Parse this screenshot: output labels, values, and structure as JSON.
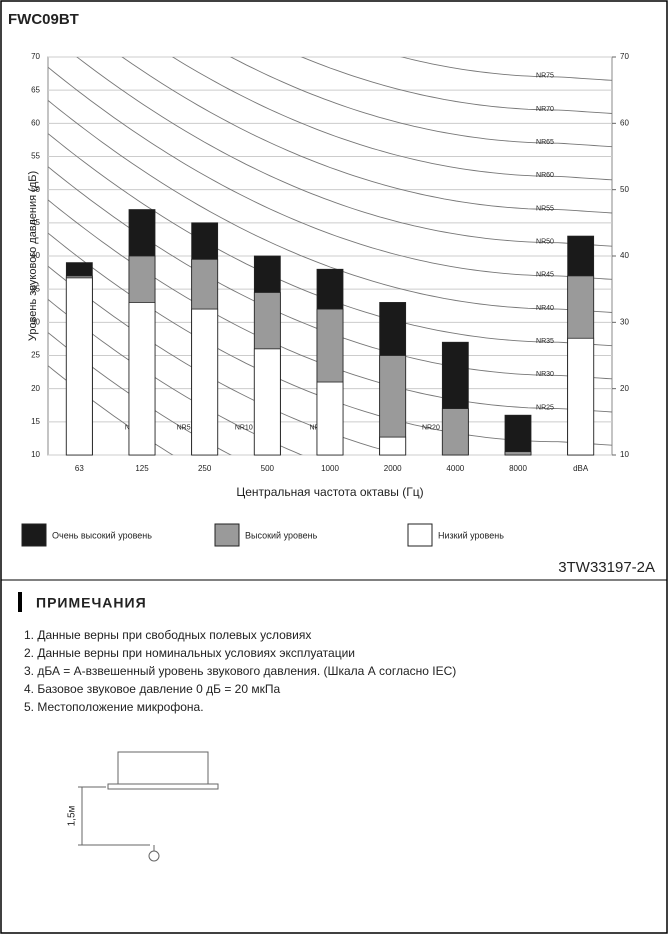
{
  "chart_data": {
    "type": "bar",
    "title": "FWC09BT",
    "y_label": "Уровень звукового давления (дБ)",
    "x_label": "Центральная частота октавы (Гц)",
    "categories": [
      "63",
      "125",
      "250",
      "500",
      "1000",
      "2000",
      "4000",
      "8000",
      "dBA"
    ],
    "series": [
      {
        "name": "Очень высокий уровень",
        "color": "#1a1a1a",
        "values": [
          39,
          47,
          45,
          40,
          38,
          33,
          27,
          16,
          43
        ]
      },
      {
        "name": "Высокий уровень",
        "color": "#9a9a9a",
        "values": [
          37,
          40,
          39.5,
          34.5,
          32,
          25,
          17,
          10.5,
          37
        ]
      },
      {
        "name": "Низкий уровень",
        "color": "#ffffff",
        "values": [
          36.7,
          33,
          32,
          26,
          21,
          12.7,
          10,
          10,
          27.6
        ]
      }
    ],
    "ylim": [
      10,
      70
    ],
    "yticks": [
      10,
      15,
      20,
      25,
      30,
      35,
      40,
      45,
      50,
      55,
      60,
      65,
      70
    ],
    "y2lim": [
      10,
      70
    ],
    "y2ticks": [
      10,
      20,
      30,
      40,
      50,
      60,
      70
    ],
    "nr_curves": [
      "NR75",
      "NR70",
      "NR65",
      "NR60",
      "NR55",
      "NR50",
      "NR45",
      "NR40",
      "NR35",
      "NR30",
      "NR25",
      "NR20",
      "NR15",
      "NR10",
      "NR5",
      "NR0"
    ]
  },
  "doc_code": "3TW33197-2A",
  "notes": {
    "heading": "ПРИМЕЧАНИЯ",
    "items": [
      "1.  Данные верны при свободных полевых условиях",
      "2.  Данные верны при номинальных условиях эксплуатации",
      "3.  дБА = А-взвешенный уровень звукового давления. (Шкала А согласно IEC)",
      "4.  Базовое звуковое давление 0 дБ = 20 мкПа",
      "5.  Местоположение микрофона."
    ]
  },
  "mic_label": "1,5м"
}
